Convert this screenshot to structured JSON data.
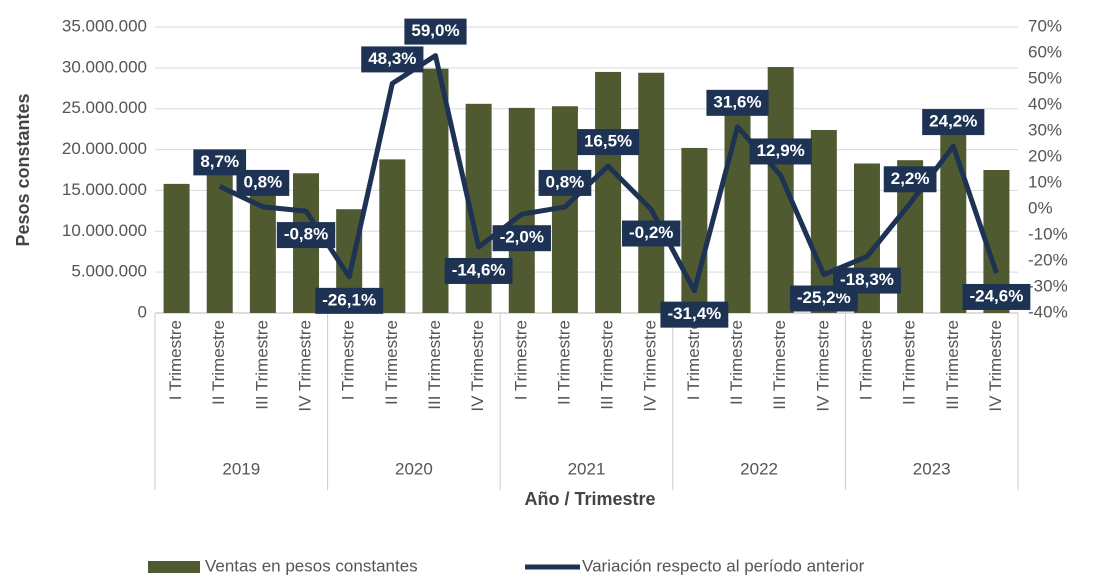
{
  "chart_data": {
    "type": "combo",
    "x_label": "Año / Trimestre",
    "y_label": "Pesos constantes",
    "categories": [
      "I Trimestre",
      "II Trimestre",
      "III Trimestre",
      "IV Trimestre",
      "I Trimestre",
      "II Trimestre",
      "III Trimestre",
      "IV Trimestre",
      "I Trimestre",
      "II Trimestre",
      "III Trimestre",
      "IV Trimestre",
      "I Trimestre",
      "II Trimestre",
      "III Trimestre",
      "IV Trimestre",
      "I Trimestre",
      "II Trimestre",
      "III Trimestre",
      "IV Trimestre"
    ],
    "groups": [
      "2019",
      "2020",
      "2021",
      "2022",
      "2023"
    ],
    "series": [
      {
        "name": "Ventas en pesos constantes",
        "type": "bar",
        "color": "#4f5a31",
        "values": [
          15800000,
          17200000,
          17300000,
          17100000,
          12700000,
          18800000,
          29900000,
          25600000,
          25100000,
          25300000,
          29500000,
          29400000,
          20200000,
          26600000,
          30100000,
          22400000,
          18300000,
          18700000,
          23200000,
          17500000
        ]
      },
      {
        "name": "Variación respecto al período anterior",
        "type": "line",
        "color": "#1e3354",
        "axis": "y2",
        "values": [
          null,
          8.7,
          0.8,
          -0.8,
          -26.1,
          48.3,
          59.0,
          -14.6,
          -2.0,
          0.8,
          16.5,
          -0.2,
          -31.4,
          31.6,
          12.9,
          -25.2,
          -18.3,
          2.2,
          24.2,
          -24.6
        ],
        "value_labels": [
          null,
          "8,7%",
          "0,8%",
          "-0,8%",
          "-26,1%",
          "48,3%",
          "59,0%",
          "-14,6%",
          "-2,0%",
          "0,8%",
          "16,5%",
          "-0,2%",
          "-31,4%",
          "31,6%",
          "12,9%",
          "-25,2%",
          "-18,3%",
          "2,2%",
          "24,2%",
          "-24,6%"
        ]
      }
    ],
    "ylim": [
      0,
      35000000
    ],
    "yticks": [
      0,
      {
        "value": 5000000,
        "label": "5.000.000"
      },
      {
        "value": 10000000,
        "label": "10.000.000"
      },
      {
        "value": 15000000,
        "label": "15.000.000"
      },
      {
        "value": 20000000,
        "label": "20.000.000"
      },
      {
        "value": 25000000,
        "label": "25.000.000"
      },
      {
        "value": 30000000,
        "label": "30.000.000"
      },
      {
        "value": 35000000,
        "label": "35.000.000"
      }
    ],
    "y2lim": [
      -40,
      70
    ],
    "y2ticks": [
      {
        "value": -40,
        "label": "-40%"
      },
      {
        "value": -30,
        "label": "-30%"
      },
      {
        "value": -20,
        "label": "-20%"
      },
      {
        "value": -10,
        "label": "-10%"
      },
      {
        "value": 0,
        "label": "0%"
      },
      {
        "value": 10,
        "label": "10%"
      },
      {
        "value": 20,
        "label": "20%"
      },
      {
        "value": 30,
        "label": "30%"
      },
      {
        "value": 40,
        "label": "40%"
      },
      {
        "value": 50,
        "label": "50%"
      },
      {
        "value": 60,
        "label": "60%"
      },
      {
        "value": 70,
        "label": "70%"
      }
    ],
    "grid": true,
    "legend": "bottom"
  }
}
